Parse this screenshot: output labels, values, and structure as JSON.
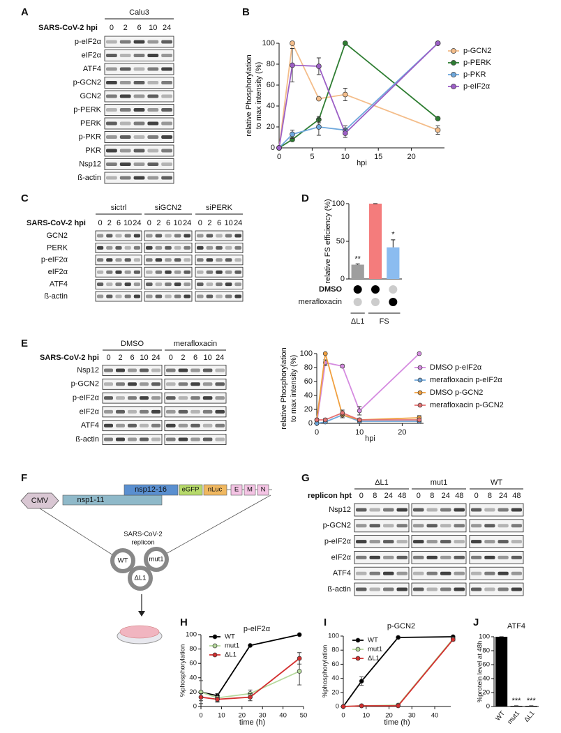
{
  "panel_labels": [
    "A",
    "B",
    "C",
    "D",
    "E",
    "F",
    "G",
    "H",
    "I",
    "J"
  ],
  "blots": [
    {
      "lane_header": "SARS-CoV-2 hpi",
      "groups": [
        {
          "label": "Calu3",
          "lanes": [
            "0",
            "2",
            "6",
            "10",
            "24"
          ]
        }
      ],
      "rows": [
        "p-eIF2α",
        "eIF2α",
        "ATF4",
        "p-GCN2",
        "GCN2",
        "p-PERK",
        "PERK",
        "p-PKR",
        "PKR",
        "Nsp12",
        "ß-actin"
      ]
    },
    {
      "lane_header": "SARS-CoV-2 hpi",
      "groups": [
        {
          "label": "sictrl",
          "lanes": [
            "0",
            "2",
            "6",
            "10",
            "24"
          ]
        },
        {
          "label": "siGCN2",
          "lanes": [
            "0",
            "2",
            "6",
            "10",
            "24"
          ]
        },
        {
          "label": "siPERK",
          "lanes": [
            "0",
            "2",
            "6",
            "10",
            "24"
          ]
        }
      ],
      "rows": [
        "GCN2",
        "PERK",
        "p-eIF2α",
        "eIF2α",
        "ATF4",
        "ß-actin"
      ]
    },
    {
      "lane_header": "SARS-CoV-2 hpi",
      "groups": [
        {
          "label": "DMSO",
          "lanes": [
            "0",
            "2",
            "6",
            "10",
            "24"
          ]
        },
        {
          "label": "merafloxacin",
          "lanes": [
            "0",
            "2",
            "6",
            "10",
            "24"
          ]
        }
      ],
      "rows": [
        "Nsp12",
        "p-GCN2",
        "p-eIF2α",
        "eIF2α",
        "ATF4",
        "ß-actin"
      ]
    },
    {
      "lane_header": "replicon hpt",
      "groups": [
        {
          "label": "ΔL1",
          "lanes": [
            "0",
            "8",
            "24",
            "48"
          ]
        },
        {
          "label": "mut1",
          "lanes": [
            "0",
            "8",
            "24",
            "48"
          ]
        },
        {
          "label": "WT",
          "lanes": [
            "0",
            "8",
            "24",
            "48"
          ]
        }
      ],
      "rows": [
        "Nsp12",
        "p-GCN2",
        "p-eIF2α",
        "eIF2α",
        "ATF4",
        "ß-actin"
      ]
    }
  ],
  "diagram": {
    "promoter": "CMV",
    "segments": [
      "nsp1-11",
      "nsp12-16",
      "eGFP",
      "nLuc",
      "E",
      "M",
      "N"
    ],
    "replicon_label": [
      "SARS-CoV-2",
      "replicon"
    ],
    "variants": [
      "WT",
      "mut1",
      "ΔL1"
    ]
  },
  "chart_data": [
    {
      "type": "line",
      "ylabel": [
        "relative Phosphorylation",
        "to max intensity (%)"
      ],
      "xlabel": "hpi",
      "x": [
        0,
        2,
        6,
        10,
        24
      ],
      "xlim": [
        0,
        25
      ],
      "xticks": [
        0,
        5,
        10,
        15,
        20
      ],
      "ylim": [
        0,
        100
      ],
      "yticks": [
        0,
        20,
        40,
        60,
        80,
        100
      ],
      "series": [
        {
          "name": "p-GCN2",
          "color": "#f4bd8a",
          "values": [
            0,
            100,
            47,
            51,
            17
          ],
          "errors": [
            0,
            0,
            0,
            6,
            4
          ]
        },
        {
          "name": "p-PERK",
          "color": "#2e7d32",
          "values": [
            0,
            8,
            27,
            100,
            28
          ],
          "errors": [
            0,
            0,
            3,
            0,
            0
          ]
        },
        {
          "name": "p-PKR",
          "color": "#6fa8dc",
          "values": [
            0,
            13,
            20,
            17,
            100
          ],
          "errors": [
            0,
            4,
            8,
            4,
            0
          ]
        },
        {
          "name": "p-eIF2α",
          "color": "#9c5fc6",
          "values": [
            0,
            79,
            78,
            14,
            100
          ],
          "errors": [
            0,
            16,
            8,
            4,
            0
          ]
        }
      ]
    },
    {
      "type": "bar",
      "ylabel": [
        "relative FS efficiency (%)"
      ],
      "categories": [
        null,
        null,
        null
      ],
      "values": [
        19,
        100,
        42
      ],
      "errors": [
        1,
        0,
        10
      ],
      "colors": [
        "#9e9e9e",
        "#f47c7c",
        "#8bbcf0"
      ],
      "significance": [
        "**",
        null,
        "*"
      ],
      "ylim": [
        0,
        100
      ],
      "yticks": [
        0,
        50,
        100
      ],
      "matrix": [
        {
          "name": "DMSO",
          "present": [
            true,
            true,
            false
          ]
        },
        {
          "name": "merafloxacin",
          "present": [
            false,
            false,
            true
          ]
        }
      ],
      "groups": [
        {
          "label": "ΔL1",
          "members": [
            0
          ]
        },
        {
          "label": "FS",
          "members": [
            1,
            2
          ]
        }
      ]
    },
    {
      "type": "line",
      "ylabel": [
        "relative Phosphorylation",
        "to max intensity (%)"
      ],
      "xlabel": "hpi",
      "x": [
        0,
        2,
        6,
        10,
        24
      ],
      "xlim": [
        0,
        25
      ],
      "xticks": [
        0,
        10,
        20
      ],
      "ylim": [
        0,
        100
      ],
      "yticks": [
        0,
        20,
        40,
        60,
        80,
        100
      ],
      "series": [
        {
          "name": "DMSO p-eIF2α",
          "color": "#d58be0",
          "values": [
            0,
            87,
            82,
            18,
            100
          ],
          "errors": [
            0,
            4,
            2,
            6,
            0
          ]
        },
        {
          "name": "merafloxacin p-eIF2α",
          "color": "#6fa8dc",
          "values": [
            0,
            2,
            12,
            3,
            3
          ],
          "errors": [
            0,
            1,
            4,
            1,
            1
          ]
        },
        {
          "name": "DMSO p-GCN2",
          "color": "#f0a040",
          "values": [
            5,
            100,
            12,
            5,
            8
          ],
          "errors": [
            2,
            0,
            4,
            2,
            3
          ]
        },
        {
          "name": "merafloxacin p-GCN2",
          "color": "#e57373",
          "values": [
            5,
            5,
            15,
            5,
            5
          ],
          "errors": [
            2,
            2,
            4,
            2,
            2
          ]
        }
      ]
    },
    {
      "type": "line",
      "title": "p-eIF2α",
      "ylabel": [
        "%phosphorylation"
      ],
      "xlabel": "time (h)",
      "x": [
        0,
        8,
        24,
        48
      ],
      "xlim": [
        0,
        50
      ],
      "xticks": [
        0,
        10,
        20,
        30,
        40,
        50
      ],
      "ylim": [
        0,
        100
      ],
      "yticks": [
        0,
        20,
        40,
        60,
        80,
        100
      ],
      "series": [
        {
          "name": "WT",
          "color": "#000000",
          "values": [
            20,
            15,
            85,
            100
          ],
          "errors": [
            16,
            0,
            0,
            0
          ]
        },
        {
          "name": "mut1",
          "color": "#b5d99c",
          "values": [
            20,
            12,
            18,
            49
          ],
          "errors": [
            0,
            6,
            5,
            19
          ]
        },
        {
          "name": "ΔL1",
          "color": "#d32f2f",
          "values": [
            13,
            10,
            13,
            67
          ],
          "errors": [
            5,
            3,
            5,
            8
          ]
        }
      ]
    },
    {
      "type": "line",
      "title": "p-GCN2",
      "ylabel": [
        "%phosphorylation"
      ],
      "xlabel": "time (h)",
      "x": [
        0,
        8,
        24,
        48
      ],
      "xlim": [
        0,
        47
      ],
      "xticks": [
        0,
        10,
        20,
        30,
        40
      ],
      "ylim": [
        0,
        100
      ],
      "yticks": [
        0,
        20,
        40,
        60,
        80,
        100
      ],
      "series": [
        {
          "name": "WT",
          "color": "#000000",
          "values": [
            0,
            36,
            98,
            99
          ],
          "errors": [
            0,
            6,
            1,
            1
          ]
        },
        {
          "name": "mut1",
          "color": "#b5d99c",
          "values": [
            0,
            1,
            2,
            96
          ],
          "errors": [
            0,
            1,
            1,
            2
          ]
        },
        {
          "name": "ΔL1",
          "color": "#d32f2f",
          "values": [
            0,
            1,
            1,
            95
          ],
          "errors": [
            0,
            1,
            1,
            2
          ]
        }
      ]
    },
    {
      "type": "bar",
      "title": "ATF4",
      "ylabel": [
        "%protein level at 48h"
      ],
      "categories": [
        "WT",
        "mut1",
        "ΔL1"
      ],
      "values": [
        100,
        1,
        1
      ],
      "errors": [
        0,
        0,
        0
      ],
      "colors": [
        "#000000",
        "#000000",
        "#000000"
      ],
      "significance": [
        null,
        "***",
        "***"
      ],
      "ylim": [
        0,
        100
      ],
      "yticks": [
        0,
        20,
        40,
        60,
        80,
        100
      ]
    }
  ]
}
